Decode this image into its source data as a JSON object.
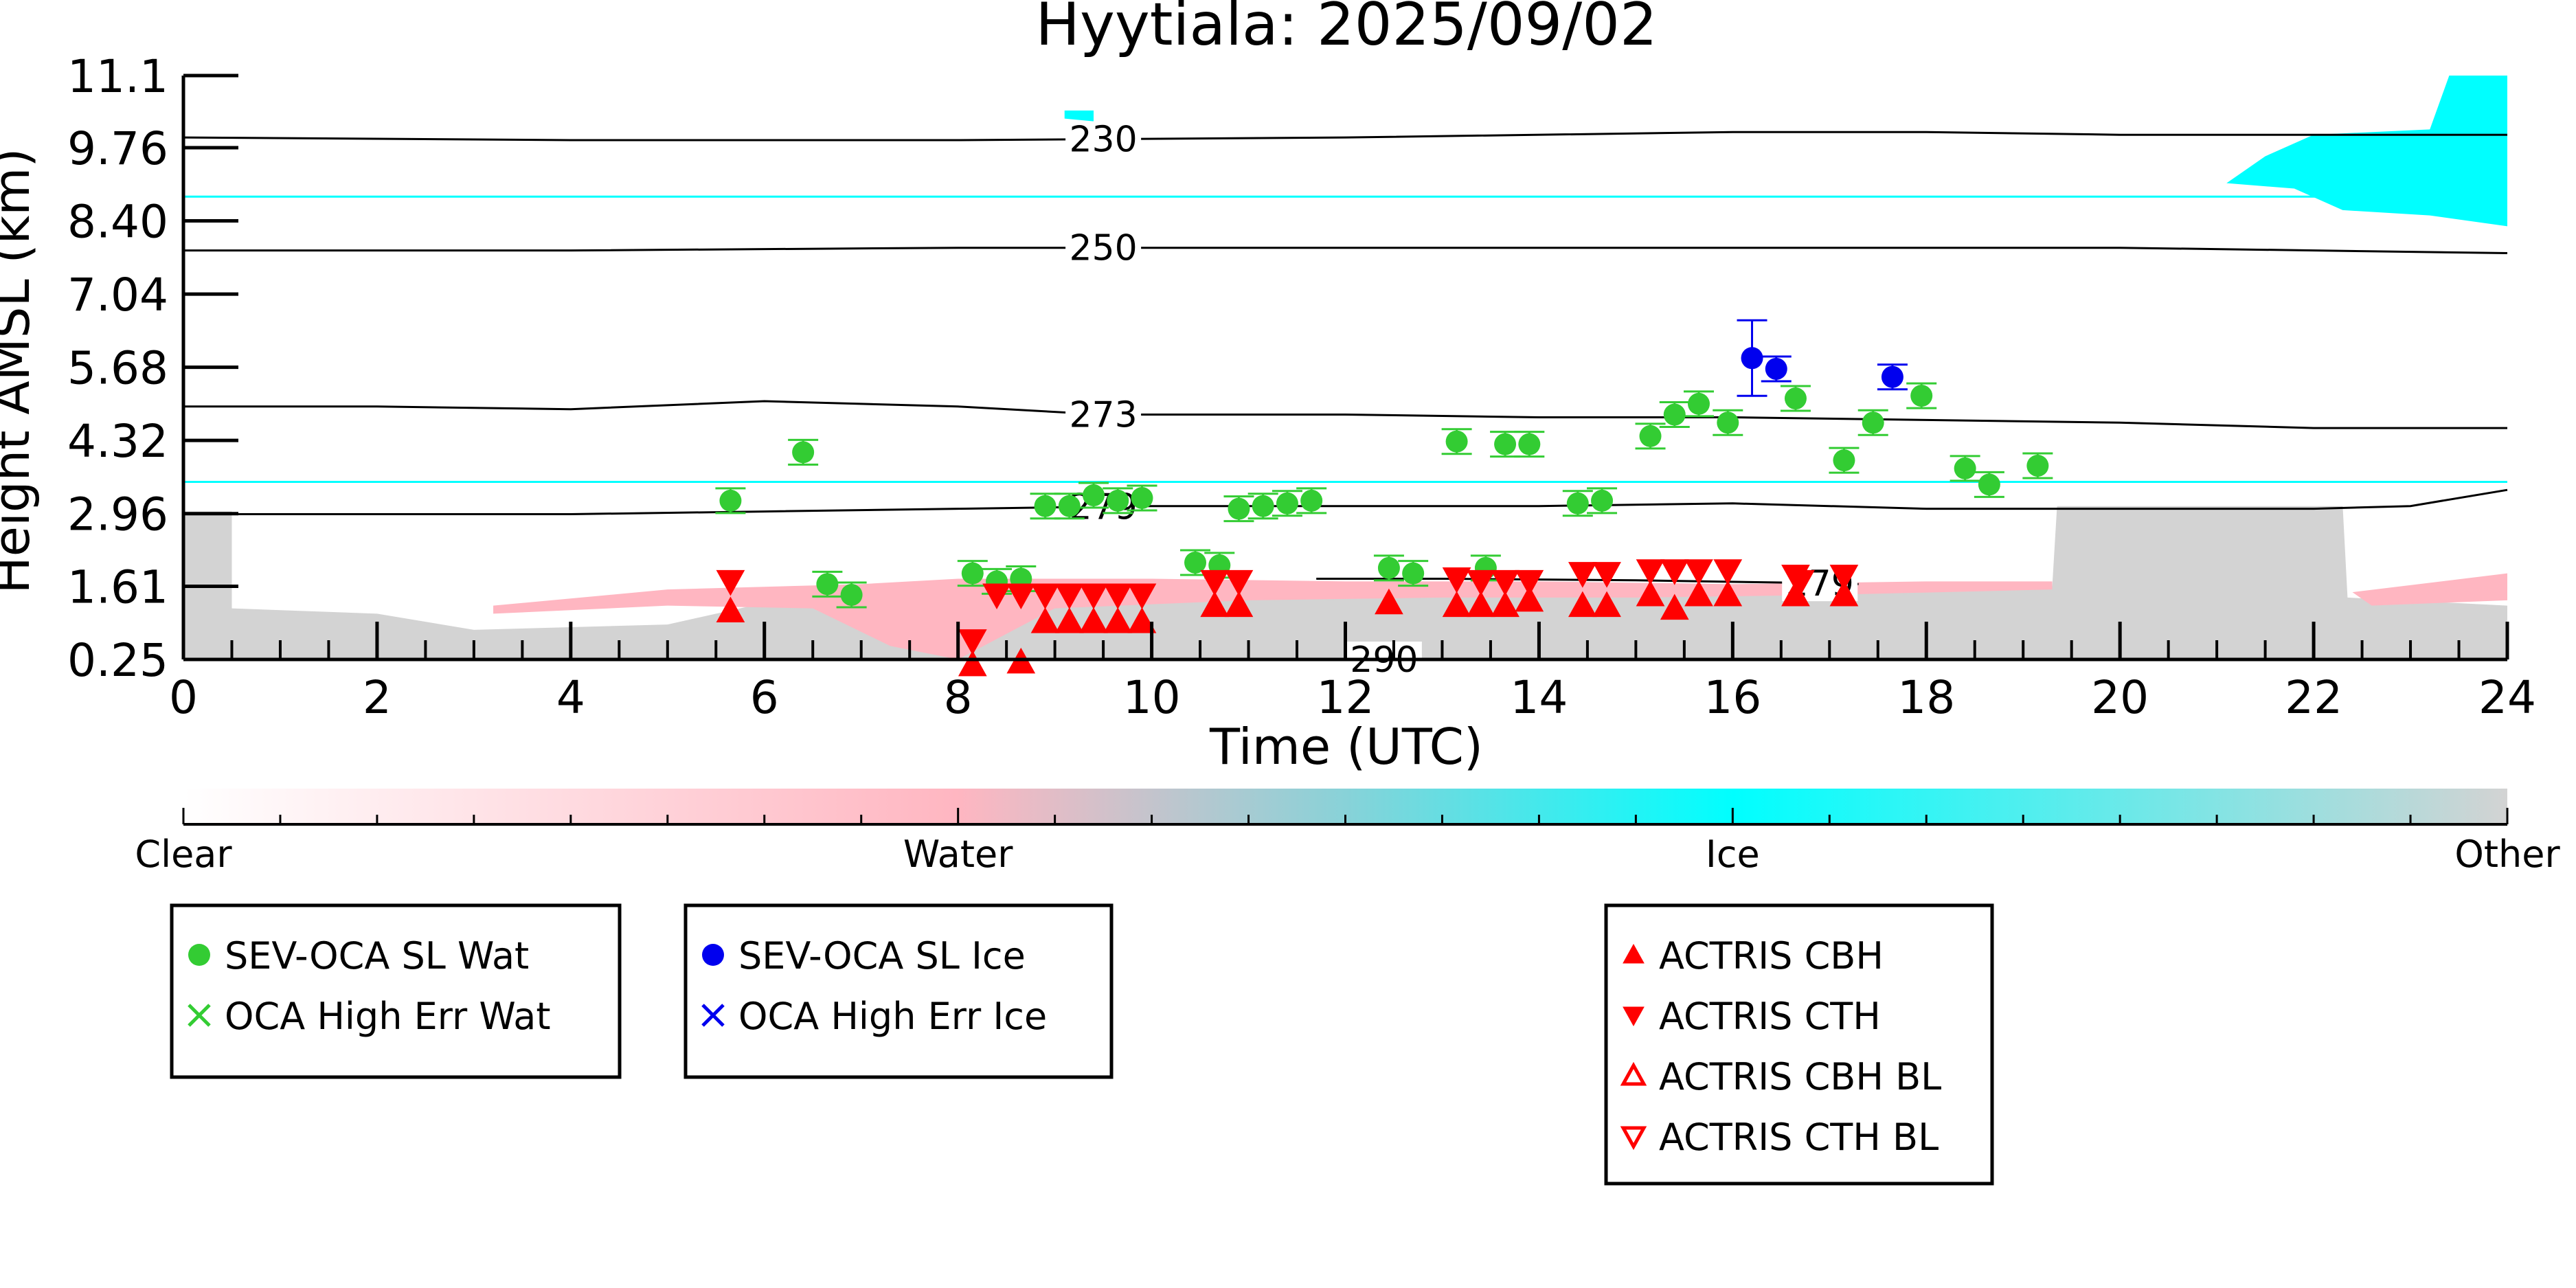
{
  "chart_data": {
    "type": "scatter",
    "title": "Hyytiala: 2025/09/02",
    "xlabel": "Time (UTC)",
    "ylabel": "Height AMSL (km)",
    "xlim": [
      0,
      24
    ],
    "ylim": [
      0.25,
      11.1
    ],
    "x_ticks": [
      "0",
      "2",
      "4",
      "6",
      "8",
      "10",
      "12",
      "14",
      "16",
      "18",
      "20",
      "22",
      "24"
    ],
    "y_ticks": [
      "0.25",
      "1.61",
      "2.96",
      "4.32",
      "5.68",
      "7.04",
      "8.40",
      "9.76",
      "11.1"
    ],
    "y_tick_values": [
      0.25,
      1.61,
      2.96,
      4.32,
      5.68,
      7.04,
      8.4,
      9.76,
      11.1
    ],
    "colorbar": {
      "labels": [
        "Clear",
        "Water",
        "Ice",
        "Other"
      ],
      "colors": [
        "#ffffff",
        "#ffb6c1",
        "#00ffff",
        "#d3d3d3"
      ]
    },
    "contours": [
      {
        "label": "230",
        "label_x": 9.5,
        "points": [
          [
            0,
            9.95
          ],
          [
            4,
            9.9
          ],
          [
            8,
            9.9
          ],
          [
            12,
            9.95
          ],
          [
            16,
            10.05
          ],
          [
            18,
            10.05
          ],
          [
            20,
            10.0
          ],
          [
            24,
            10.0
          ]
        ]
      },
      {
        "label": "250",
        "label_x": 9.5,
        "points": [
          [
            0,
            7.85
          ],
          [
            4,
            7.85
          ],
          [
            8,
            7.9
          ],
          [
            12,
            7.9
          ],
          [
            16,
            7.9
          ],
          [
            20,
            7.9
          ],
          [
            24,
            7.8
          ]
        ]
      },
      {
        "label": "273",
        "label_x": 9.5,
        "points": [
          [
            0,
            4.95
          ],
          [
            2,
            4.95
          ],
          [
            4,
            4.9
          ],
          [
            6,
            5.05
          ],
          [
            8,
            4.95
          ],
          [
            9.5,
            4.8
          ],
          [
            12,
            4.8
          ],
          [
            14,
            4.75
          ],
          [
            16,
            4.75
          ],
          [
            18,
            4.7
          ],
          [
            20,
            4.65
          ],
          [
            22,
            4.55
          ],
          [
            24,
            4.55
          ]
        ]
      },
      {
        "label": "279",
        "label_x": 9.5,
        "points": [
          [
            0,
            2.95
          ],
          [
            4,
            2.95
          ],
          [
            6,
            3.0
          ],
          [
            8,
            3.05
          ],
          [
            10,
            3.1
          ],
          [
            12,
            3.1
          ],
          [
            14,
            3.1
          ],
          [
            16,
            3.15
          ],
          [
            18,
            3.05
          ],
          [
            20,
            3.05
          ],
          [
            22,
            3.05
          ],
          [
            23,
            3.1
          ],
          [
            24,
            3.4
          ]
        ]
      },
      {
        "label": "279",
        "label_x": 16.9,
        "points": [
          [
            11.7,
            1.75
          ],
          [
            13,
            1.75
          ],
          [
            15,
            1.72
          ],
          [
            16.5,
            1.68
          ],
          [
            17.3,
            1.65
          ]
        ]
      },
      {
        "label": "290",
        "label_x": 12.4,
        "points": []
      }
    ],
    "cloud_fill": {
      "ice_layers": [
        {
          "x0": 0,
          "x1": 22.5,
          "y": 8.85
        },
        {
          "x0": 0,
          "x1": 24,
          "y": 3.55
        }
      ]
    },
    "series": [
      {
        "name": "SEV-OCA SL Wat",
        "color": "#33cc33",
        "marker": "circle",
        "points": [
          [
            5.65,
            3.2
          ],
          [
            6.4,
            4.1
          ],
          [
            6.65,
            1.65
          ],
          [
            6.9,
            1.45
          ],
          [
            8.15,
            1.85
          ],
          [
            8.4,
            1.7
          ],
          [
            8.65,
            1.75
          ],
          [
            8.9,
            3.1
          ],
          [
            9.15,
            3.1
          ],
          [
            9.4,
            3.3
          ],
          [
            9.65,
            3.2
          ],
          [
            9.9,
            3.25
          ],
          [
            10.45,
            2.05
          ],
          [
            10.7,
            2.0
          ],
          [
            10.9,
            3.05
          ],
          [
            11.15,
            3.1
          ],
          [
            11.4,
            3.15
          ],
          [
            11.65,
            3.2
          ],
          [
            12.45,
            1.95
          ],
          [
            12.7,
            1.85
          ],
          [
            13.15,
            4.3
          ],
          [
            13.45,
            1.95
          ],
          [
            13.65,
            4.25
          ],
          [
            13.9,
            4.25
          ],
          [
            14.4,
            3.15
          ],
          [
            14.65,
            3.2
          ],
          [
            15.15,
            4.4
          ],
          [
            15.4,
            4.8
          ],
          [
            15.65,
            5.0
          ],
          [
            15.95,
            4.65
          ],
          [
            16.65,
            5.1
          ],
          [
            17.15,
            3.95
          ],
          [
            17.45,
            4.65
          ],
          [
            17.95,
            5.15
          ],
          [
            18.4,
            3.8
          ],
          [
            18.65,
            3.5
          ],
          [
            19.15,
            3.85
          ]
        ]
      },
      {
        "name": "OCA High Err Wat",
        "color": "#33cc33",
        "marker": "x",
        "points": []
      },
      {
        "name": "SEV-OCA SL Ice",
        "color": "#0000ee",
        "marker": "circle",
        "points": [
          [
            16.2,
            5.85
          ],
          [
            16.45,
            5.65
          ],
          [
            17.65,
            5.5
          ]
        ]
      },
      {
        "name": "OCA High Err Ice",
        "color": "#0000ee",
        "marker": "x",
        "points": []
      },
      {
        "name": "ACTRIS CBH",
        "color": "#ff0000",
        "marker": "triangle-up",
        "points": [
          [
            5.65,
            1.15
          ],
          [
            8.15,
            0.15
          ],
          [
            8.65,
            0.2
          ],
          [
            8.9,
            0.95
          ],
          [
            9.15,
            0.95
          ],
          [
            9.4,
            0.95
          ],
          [
            9.65,
            0.95
          ],
          [
            9.9,
            0.95
          ],
          [
            10.65,
            1.25
          ],
          [
            10.9,
            1.25
          ],
          [
            12.45,
            1.3
          ],
          [
            13.15,
            1.25
          ],
          [
            13.4,
            1.25
          ],
          [
            13.65,
            1.25
          ],
          [
            13.9,
            1.35
          ],
          [
            14.45,
            1.25
          ],
          [
            14.7,
            1.25
          ],
          [
            15.15,
            1.45
          ],
          [
            15.4,
            1.2
          ],
          [
            15.65,
            1.45
          ],
          [
            15.95,
            1.45
          ],
          [
            16.65,
            1.45
          ],
          [
            17.15,
            1.45
          ]
        ]
      },
      {
        "name": "ACTRIS CTH",
        "color": "#ff0000",
        "marker": "triangle-down",
        "points": [
          [
            5.65,
            1.7
          ],
          [
            8.15,
            0.6
          ],
          [
            8.4,
            1.45
          ],
          [
            8.65,
            1.45
          ],
          [
            8.9,
            1.45
          ],
          [
            9.15,
            1.45
          ],
          [
            9.4,
            1.45
          ],
          [
            9.65,
            1.45
          ],
          [
            9.9,
            1.45
          ],
          [
            10.65,
            1.7
          ],
          [
            10.9,
            1.7
          ],
          [
            13.15,
            1.75
          ],
          [
            13.4,
            1.7
          ],
          [
            13.65,
            1.7
          ],
          [
            13.9,
            1.7
          ],
          [
            14.45,
            1.85
          ],
          [
            14.7,
            1.85
          ],
          [
            15.15,
            1.9
          ],
          [
            15.4,
            1.9
          ],
          [
            15.65,
            1.9
          ],
          [
            15.95,
            1.9
          ],
          [
            16.65,
            1.8
          ],
          [
            16.7,
            1.7
          ],
          [
            17.15,
            1.8
          ]
        ]
      },
      {
        "name": "ACTRIS CBH BL",
        "color": "#ff0000",
        "marker": "triangle-up-open",
        "points": []
      },
      {
        "name": "ACTRIS CTH BL",
        "color": "#ff0000",
        "marker": "triangle-down-open",
        "points": []
      }
    ],
    "legend_boxes": [
      [
        "SEV-OCA SL Wat",
        "OCA High Err Wat"
      ],
      [
        "SEV-OCA SL Ice",
        "OCA High Err Ice"
      ],
      [
        "ACTRIS CBH",
        "ACTRIS CTH",
        "ACTRIS CBH BL",
        "ACTRIS CTH BL"
      ]
    ]
  }
}
